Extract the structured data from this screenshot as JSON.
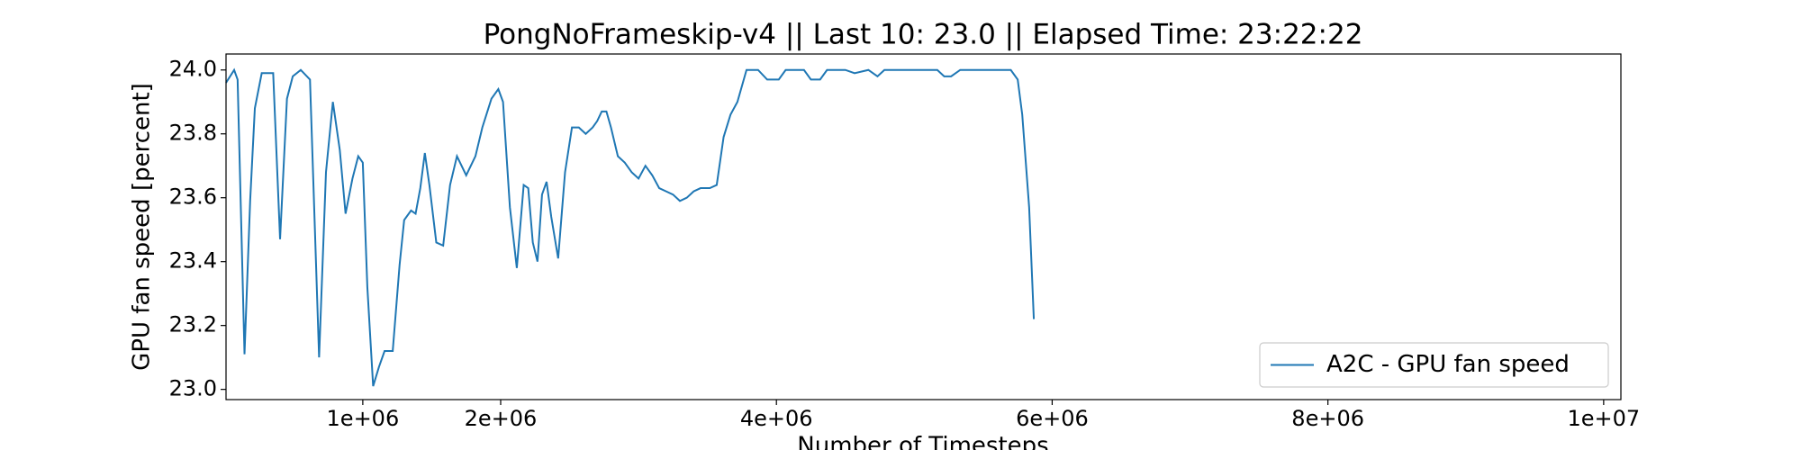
{
  "chart_data": {
    "type": "line",
    "title": "PongNoFrameskip-v4 || Last 10: 23.0 || Elapsed Time: 23:22:22",
    "xlabel": "Number of Timesteps",
    "ylabel": "GPU fan speed [percent]",
    "xlim": [
      8000,
      10125000
    ],
    "ylim": [
      22.968,
      24.05
    ],
    "xticks": [
      {
        "value": 1000000,
        "label": "1e+06"
      },
      {
        "value": 2000000,
        "label": "2e+06"
      },
      {
        "value": 4000000,
        "label": "4e+06"
      },
      {
        "value": 6000000,
        "label": "6e+06"
      },
      {
        "value": 8000000,
        "label": "8e+06"
      },
      {
        "value": 10000000,
        "label": "1e+07"
      }
    ],
    "yticks": [
      {
        "value": 23,
        "label": "23.0"
      },
      23.2,
      23.4,
      23.6,
      23.8,
      {
        "value": 24,
        "label": "24.0"
      }
    ],
    "grid": false,
    "legend": "lower right",
    "x": [
      8000,
      67000,
      92000,
      142000,
      183000,
      217000,
      267000,
      333000,
      350000,
      400000,
      450000,
      492000,
      550000,
      617000,
      683000,
      733000,
      783000,
      833000,
      875000,
      925000,
      967000,
      1000000,
      1033000,
      1075000,
      1117000,
      1158000,
      1217000,
      1267000,
      1300000,
      1350000,
      1383000,
      1417000,
      1450000,
      1483000,
      1533000,
      1583000,
      1633000,
      1683000,
      1750000,
      1817000,
      1867000,
      1933000,
      1983000,
      2017000,
      2067000,
      2117000,
      2167000,
      2200000,
      2233000,
      2267000,
      2300000,
      2333000,
      2367000,
      2417000,
      2467000,
      2517000,
      2567000,
      2617000,
      2667000,
      2700000,
      2733000,
      2767000,
      2800000,
      2850000,
      2900000,
      2950000,
      3000000,
      3050000,
      3100000,
      3150000,
      3200000,
      3250000,
      3300000,
      3350000,
      3400000,
      3450000,
      3517000,
      3567000,
      3617000,
      3667000,
      3717000,
      3783000,
      3867000,
      3933000,
      4017000,
      4067000,
      4200000,
      4250000,
      4317000,
      4367000,
      4500000,
      4567000,
      4667000,
      4733000,
      4783000,
      4867000,
      4917000,
      5033000,
      5167000,
      5217000,
      5267000,
      5333000,
      5700000,
      5750000,
      5783000,
      5833000,
      5867000
    ],
    "series": [
      {
        "name": "A2C - GPU fan speed",
        "color": "#1f77b4",
        "values": [
          23.96,
          24.0,
          23.97,
          23.11,
          23.59,
          23.88,
          23.99,
          23.99,
          23.99,
          23.47,
          23.91,
          23.98,
          24.0,
          23.97,
          23.1,
          23.68,
          23.9,
          23.75,
          23.55,
          23.66,
          23.73,
          23.71,
          23.32,
          23.01,
          23.07,
          23.12,
          23.12,
          23.39,
          23.53,
          23.56,
          23.55,
          23.63,
          23.74,
          23.64,
          23.46,
          23.45,
          23.64,
          23.73,
          23.67,
          23.73,
          23.82,
          23.91,
          23.94,
          23.9,
          23.57,
          23.38,
          23.64,
          23.63,
          23.46,
          23.4,
          23.61,
          23.65,
          23.54,
          23.41,
          23.68,
          23.82,
          23.82,
          23.8,
          23.82,
          23.84,
          23.87,
          23.87,
          23.82,
          23.73,
          23.71,
          23.68,
          23.66,
          23.7,
          23.67,
          23.63,
          23.62,
          23.61,
          23.59,
          23.6,
          23.62,
          23.63,
          23.63,
          23.64,
          23.79,
          23.86,
          23.9,
          24.0,
          24.0,
          23.97,
          23.97,
          24.0,
          24.0,
          23.97,
          23.97,
          24.0,
          24.0,
          23.99,
          24.0,
          23.98,
          24.0,
          24.0,
          24.0,
          24.0,
          24.0,
          23.98,
          23.98,
          24.0,
          24.0,
          23.97,
          23.86,
          23.57,
          23.22
        ]
      }
    ]
  }
}
